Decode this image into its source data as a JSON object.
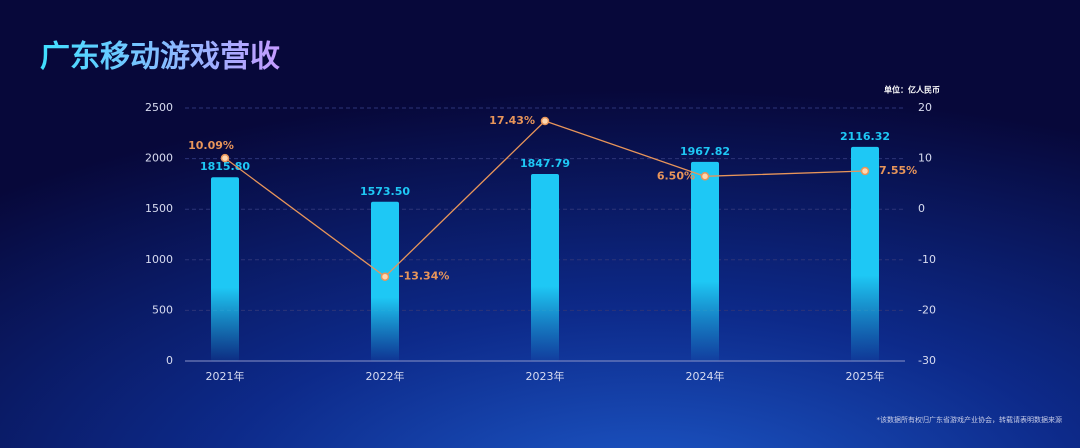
{
  "chart_data": {
    "type": "bar-line",
    "title": "广东移动游戏营收",
    "unit_label": "单位：亿人民币",
    "footnote": "*该数据所有权归广东省游戏产业协会，转载请表明数据来源",
    "categories": [
      "2021年",
      "2022年",
      "2023年",
      "2024年",
      "2025年"
    ],
    "series": [
      {
        "type": "bar",
        "color": "#1ec8f5",
        "values": [
          1815.8,
          1573.5,
          1847.79,
          1967.82,
          2116.32
        ],
        "value_labels": [
          "1815.80",
          "1573.50",
          "1847.79",
          "1967.82",
          "2116.32"
        ]
      },
      {
        "type": "line",
        "axis": "y2",
        "color": "#e8955a",
        "values": [
          10.09,
          -13.34,
          17.43,
          6.5,
          7.55
        ],
        "value_labels": [
          "10.09%",
          "-13.34%",
          "17.43%",
          "6.50%",
          "7.55%"
        ]
      }
    ],
    "ylim": [
      0,
      2500
    ],
    "yticks": [
      0,
      500,
      1000,
      1500,
      2000,
      2500
    ],
    "y2lim": [
      -30,
      20
    ],
    "y2ticks": [
      -30,
      -20,
      -10,
      0,
      10,
      20
    ],
    "grid": true
  }
}
